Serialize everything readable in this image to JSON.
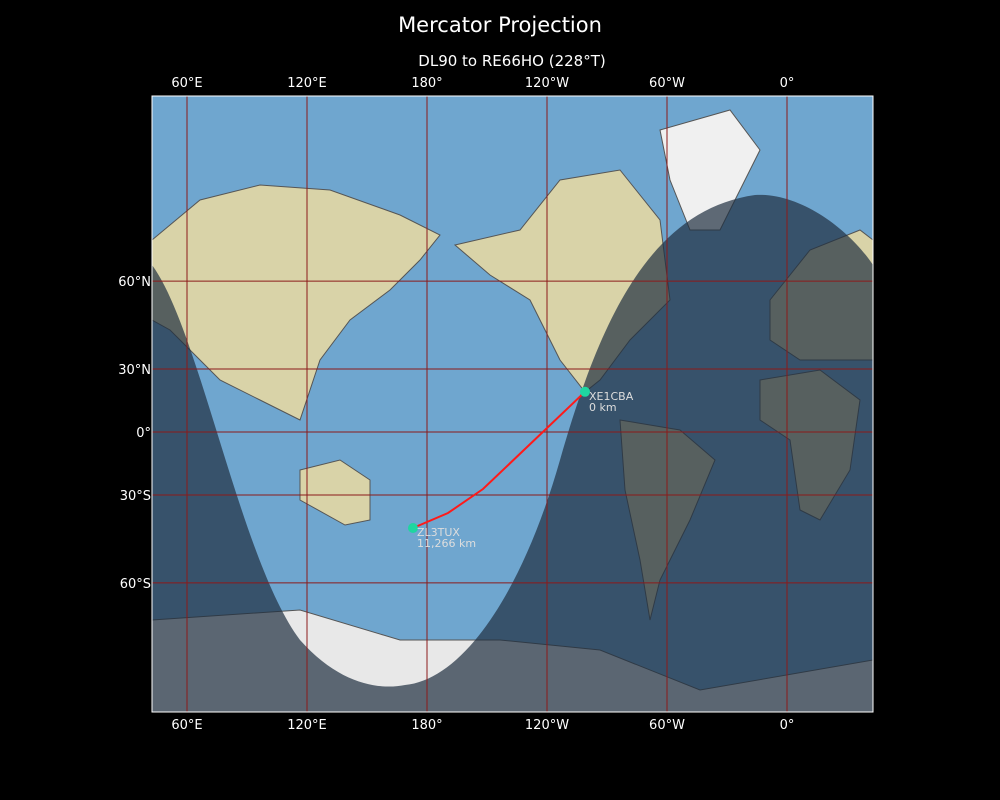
{
  "title": "Mercator Projection",
  "subtitle": "DL90 to RE66HO (228°T)",
  "map": {
    "projection": "Mercator",
    "lon_ticks": [
      {
        "lon": 60,
        "label": "60°E"
      },
      {
        "lon": 120,
        "label": "120°E"
      },
      {
        "lon": 180,
        "label": "180°"
      },
      {
        "lon": -120,
        "label": "120°W"
      },
      {
        "lon": -60,
        "label": "60°W"
      },
      {
        "lon": 0,
        "label": "0°"
      }
    ],
    "lat_ticks": [
      {
        "lat": 60,
        "label": "60°N"
      },
      {
        "lat": 30,
        "label": "30°N"
      },
      {
        "lat": 0,
        "label": "0°"
      },
      {
        "lat": -30,
        "label": "30°S"
      },
      {
        "lat": -60,
        "label": "60°S"
      }
    ],
    "colors": {
      "ocean": "#6fa6cf",
      "land": "#d9d3a8",
      "night": "#1f2f40",
      "path": "#ff1a1a",
      "marker": "#1fd6a0",
      "grid": "#8b1a1a"
    },
    "stations": [
      {
        "call": "XE1CBA",
        "distance": "0 km",
        "lat": 19.7,
        "lon": -101
      },
      {
        "call": "ZL3TUX",
        "distance": "11,266 km",
        "lat": -43.2,
        "lon": 173
      }
    ],
    "path": [
      [
        19.7,
        -101
      ],
      [
        -27.4,
        -152
      ],
      [
        -37.5,
        -169.5
      ],
      [
        -43.2,
        173
      ]
    ]
  }
}
